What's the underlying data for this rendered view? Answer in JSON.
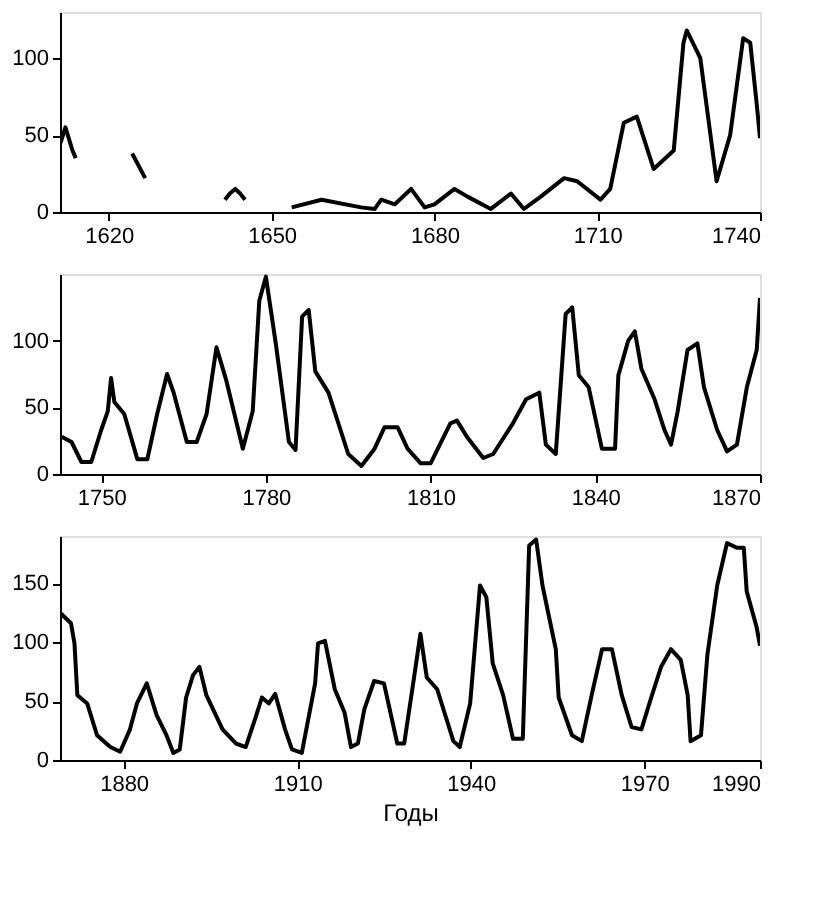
{
  "chart_data": [
    {
      "type": "line",
      "xlim": [
        1611,
        1740
      ],
      "xticks": [
        1620,
        1650,
        1680,
        1710,
        1740
      ],
      "ylim": [
        0,
        130
      ],
      "yticks": [
        0,
        50,
        100
      ],
      "series": [
        {
          "color": "#000000",
          "x": [
            1611.1,
            1612,
            1613.3,
            1613.9,
            1619,
            1624.3,
            1626.7,
            1634,
            1641.4,
            1642.3,
            1643.3,
            1644.2,
            1645.1,
            1650,
            1653.7,
            1659.2,
            1666.5,
            1669,
            1670.2,
            1672.7,
            1675.7,
            1678.2,
            1680,
            1683.7,
            1686.1,
            1690.4,
            1694.1,
            1696.5,
            1699.6,
            1703.9,
            1706.3,
            1710.6,
            1712.4,
            1714.9,
            1717.3,
            1720.4,
            1724.1,
            1725.9,
            1726.5,
            1729,
            1732,
            1734.5,
            1736.9,
            1738.2,
            1739.4,
            1740
          ],
          "values": [
            45,
            55,
            40,
            35,
            null,
            38,
            22,
            null,
            8,
            12,
            15,
            12,
            8,
            null,
            3,
            8,
            3,
            2,
            8,
            5,
            15,
            3,
            5,
            15,
            10,
            2,
            12,
            2,
            10,
            22,
            20,
            8,
            15,
            58,
            62,
            28,
            40,
            110,
            118,
            100,
            20,
            50,
            113,
            110,
            70,
            48
          ]
        }
      ]
    },
    {
      "type": "line",
      "xlim": [
        1742.5,
        1870
      ],
      "xticks": [
        1750,
        1780,
        1810,
        1840,
        1870
      ],
      "ylim": [
        0,
        150
      ],
      "yticks": [
        0,
        50,
        100
      ],
      "series": [
        {
          "color": "#000000",
          "x": [
            1742.8,
            1744.6,
            1746.4,
            1748.2,
            1750,
            1751.2,
            1751.8,
            1752.4,
            1754.2,
            1756.6,
            1758.4,
            1760.2,
            1762,
            1763.2,
            1765.6,
            1767.4,
            1769.2,
            1771,
            1772.8,
            1775.8,
            1777.6,
            1778.8,
            1780,
            1781.8,
            1784.2,
            1785.4,
            1786.6,
            1787.8,
            1789,
            1791.4,
            1795,
            1797.4,
            1799.8,
            1801.6,
            1804,
            1805.8,
            1808.2,
            1810,
            1813.6,
            1814.8,
            1816.6,
            1819.6,
            1821.4,
            1825,
            1827.4,
            1829.8,
            1831,
            1832.8,
            1834.6,
            1835.8,
            1837,
            1838.8,
            1841.2,
            1843.6,
            1844.2,
            1846,
            1847.2,
            1848.4,
            1850.8,
            1852.6,
            1853.8,
            1855,
            1856.8,
            1858.6,
            1859.8,
            1862.2,
            1864,
            1865.8,
            1867.6,
            1869.4,
            1870
          ],
          "values": [
            28,
            24,
            9,
            9,
            33,
            47,
            72,
            54,
            45,
            11,
            11,
            45,
            75,
            61,
            24,
            24,
            45,
            95,
            70,
            19,
            47,
            130,
            148,
            98,
            24,
            18,
            118,
            123,
            77,
            61,
            15,
            6,
            19,
            35,
            35,
            19,
            8,
            8,
            38,
            40,
            28,
            12,
            15,
            38,
            56,
            61,
            22,
            15,
            120,
            125,
            74,
            65,
            19,
            19,
            74,
            100,
            107,
            79,
            56,
            33,
            22,
            47,
            93,
            98,
            65,
            33,
            17,
            22,
            65,
            93,
            132
          ]
        }
      ]
    },
    {
      "type": "line",
      "xlim": [
        1869,
        1990
      ],
      "xticks": [
        1880,
        1910,
        1940,
        1970,
        1990
      ],
      "ylim": [
        0,
        190
      ],
      "yticks": [
        0,
        50,
        100,
        150
      ],
      "xlabel": "Годы",
      "series": [
        {
          "color": "#000000",
          "x": [
            1869.2,
            1870.9,
            1871.5,
            1872,
            1873.7,
            1875.4,
            1877.7,
            1879.4,
            1881.1,
            1882.3,
            1884,
            1885.7,
            1887.4,
            1888.6,
            1889.7,
            1890.8,
            1892,
            1893.1,
            1894.3,
            1897.1,
            1899.4,
            1901.1,
            1902.8,
            1903.9,
            1905.1,
            1906.2,
            1907.9,
            1909.1,
            1910.8,
            1913.1,
            1913.6,
            1914.8,
            1916.5,
            1918.2,
            1919.3,
            1920.5,
            1921.6,
            1923.3,
            1925,
            1927.3,
            1928.5,
            1930.2,
            1931.3,
            1932.4,
            1934.2,
            1937,
            1938.1,
            1939.9,
            1941.6,
            1942.7,
            1943.8,
            1945.6,
            1947.3,
            1949,
            1950.1,
            1951.3,
            1952.4,
            1954.7,
            1955.2,
            1957.5,
            1959.2,
            1960.9,
            1962.7,
            1964.4,
            1966.1,
            1967.8,
            1969.5,
            1971.2,
            1972.9,
            1974.6,
            1976.3,
            1977.5,
            1978,
            1979.8,
            1980.9,
            1982.6,
            1984.3,
            1986,
            1987.2,
            1987.7,
            1989.4,
            1990
          ],
          "values": [
            124,
            116,
            99,
            55,
            48,
            21,
            11,
            7,
            26,
            48,
            65,
            38,
            21,
            6,
            9,
            53,
            72,
            79,
            55,
            26,
            14,
            11,
            36,
            53,
            48,
            56,
            26,
            9,
            6,
            65,
            99,
            101,
            60,
            40,
            11,
            14,
            43,
            67,
            65,
            14,
            14,
            70,
            107,
            70,
            60,
            16,
            11,
            48,
            148,
            138,
            82,
            55,
            18,
            18,
            182,
            187,
            148,
            94,
            53,
            21,
            16,
            55,
            94,
            94,
            55,
            28,
            26,
            53,
            79,
            94,
            85,
            55,
            16,
            21,
            89,
            148,
            184,
            180,
            180,
            143,
            113,
            97
          ]
        }
      ]
    }
  ]
}
